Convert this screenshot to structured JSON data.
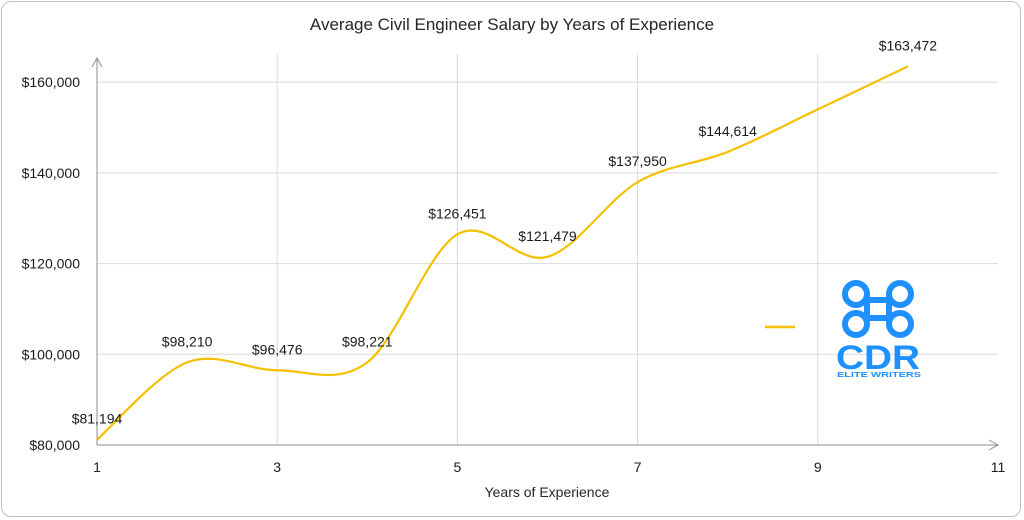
{
  "chart_data": {
    "type": "line",
    "title": "Average Civil Engineer Salary by Years of Experience",
    "xlabel": "Years of Experience",
    "ylabel": "",
    "xlim": [
      1,
      11
    ],
    "ylim": [
      80000,
      165000
    ],
    "x_ticks": [
      "1",
      "3",
      "5",
      "7",
      "9",
      "11"
    ],
    "y_ticks": [
      "$80,000",
      "$100,000",
      "$120,000",
      "$140,000",
      "$160,000"
    ],
    "grid": true,
    "smooth": true,
    "color": "#f5c000",
    "series": [
      {
        "x": [
          1,
          2,
          3,
          4,
          5,
          6,
          7,
          8,
          9,
          10
        ],
        "values": [
          81194,
          98210,
          96476,
          98221,
          126451,
          121479,
          137950,
          144614,
          154000,
          163472
        ],
        "labels": [
          "$81,194",
          "$98,210",
          "$96,476",
          "$98,221",
          "$126,451",
          "$121,479",
          "$137,950",
          "$144,614",
          "",
          "$163,472"
        ]
      }
    ]
  },
  "logo": {
    "name": "cdr-logo",
    "mark": "CDR",
    "tagline": "ELITE WRITERS",
    "color": "#1e90ff"
  }
}
